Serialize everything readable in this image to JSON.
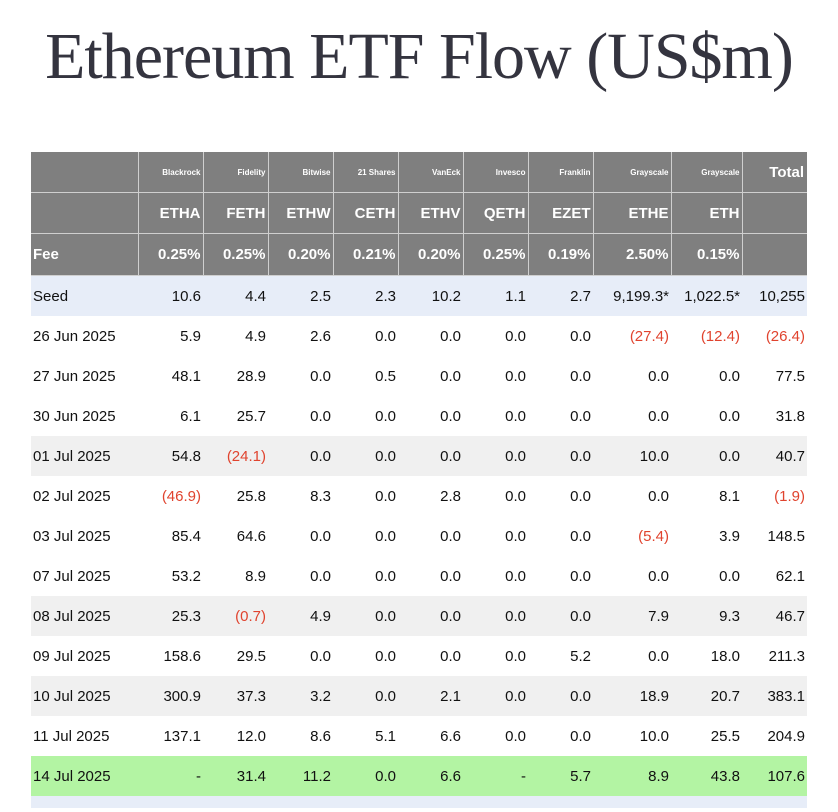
{
  "title": "Ethereum ETF Flow (US$m)",
  "colors": {
    "header_bg": "#7f7f7f",
    "seed_bg": "#e7edf8",
    "alt_row_bg": "#f0f0f0",
    "highlight_bg": "#b3f4a3",
    "negative": "#e0432e"
  },
  "table": {
    "issuers": [
      "Blackrock",
      "Fidelity",
      "Bitwise",
      "21 Shares",
      "VanEck",
      "Invesco",
      "Franklin",
      "Grayscale",
      "Grayscale"
    ],
    "total_label": "Total",
    "tickers": [
      "ETHA",
      "FETH",
      "ETHW",
      "CETH",
      "ETHV",
      "QETH",
      "EZET",
      "ETHE",
      "ETH"
    ],
    "fee_label": "Fee",
    "fees": [
      "0.25%",
      "0.25%",
      "0.20%",
      "0.21%",
      "0.20%",
      "0.25%",
      "0.19%",
      "2.50%",
      "0.15%"
    ],
    "rows": [
      {
        "label": "Seed",
        "values": [
          "10.6",
          "4.4",
          "2.5",
          "2.3",
          "10.2",
          "1.1",
          "2.7",
          "9,199.3*",
          "1,022.5*"
        ],
        "total": "10,255"
      },
      {
        "label": "26 Jun 2025",
        "values": [
          "5.9",
          "4.9",
          "2.6",
          "0.0",
          "0.0",
          "0.0",
          "0.0",
          "(27.4)",
          "(12.4)"
        ],
        "total": "(26.4)"
      },
      {
        "label": "27 Jun 2025",
        "values": [
          "48.1",
          "28.9",
          "0.0",
          "0.5",
          "0.0",
          "0.0",
          "0.0",
          "0.0",
          "0.0"
        ],
        "total": "77.5"
      },
      {
        "label": "30 Jun 2025",
        "values": [
          "6.1",
          "25.7",
          "0.0",
          "0.0",
          "0.0",
          "0.0",
          "0.0",
          "0.0",
          "0.0"
        ],
        "total": "31.8"
      },
      {
        "label": "01 Jul 2025",
        "values": [
          "54.8",
          "(24.1)",
          "0.0",
          "0.0",
          "0.0",
          "0.0",
          "0.0",
          "10.0",
          "0.0"
        ],
        "total": "40.7"
      },
      {
        "label": "02 Jul 2025",
        "values": [
          "(46.9)",
          "25.8",
          "8.3",
          "0.0",
          "2.8",
          "0.0",
          "0.0",
          "0.0",
          "8.1"
        ],
        "total": "(1.9)"
      },
      {
        "label": "03 Jul 2025",
        "values": [
          "85.4",
          "64.6",
          "0.0",
          "0.0",
          "0.0",
          "0.0",
          "0.0",
          "(5.4)",
          "3.9"
        ],
        "total": "148.5"
      },
      {
        "label": "07 Jul 2025",
        "values": [
          "53.2",
          "8.9",
          "0.0",
          "0.0",
          "0.0",
          "0.0",
          "0.0",
          "0.0",
          "0.0"
        ],
        "total": "62.1"
      },
      {
        "label": "08 Jul 2025",
        "values": [
          "25.3",
          "(0.7)",
          "4.9",
          "0.0",
          "0.0",
          "0.0",
          "0.0",
          "7.9",
          "9.3"
        ],
        "total": "46.7"
      },
      {
        "label": "09 Jul 2025",
        "values": [
          "158.6",
          "29.5",
          "0.0",
          "0.0",
          "0.0",
          "0.0",
          "5.2",
          "0.0",
          "18.0"
        ],
        "total": "211.3"
      },
      {
        "label": "10 Jul 2025",
        "values": [
          "300.9",
          "37.3",
          "3.2",
          "0.0",
          "2.1",
          "0.0",
          "0.0",
          "18.9",
          "20.7"
        ],
        "total": "383.1"
      },
      {
        "label": "11 Jul 2025",
        "values": [
          "137.1",
          "12.0",
          "8.6",
          "5.1",
          "6.6",
          "0.0",
          "0.0",
          "10.0",
          "25.5"
        ],
        "total": "204.9"
      },
      {
        "label": "14 Jul 2025",
        "values": [
          "-",
          "31.4",
          "11.2",
          "0.0",
          "6.6",
          "-",
          "5.7",
          "8.9",
          "43.8"
        ],
        "total": "107.6"
      }
    ]
  }
}
